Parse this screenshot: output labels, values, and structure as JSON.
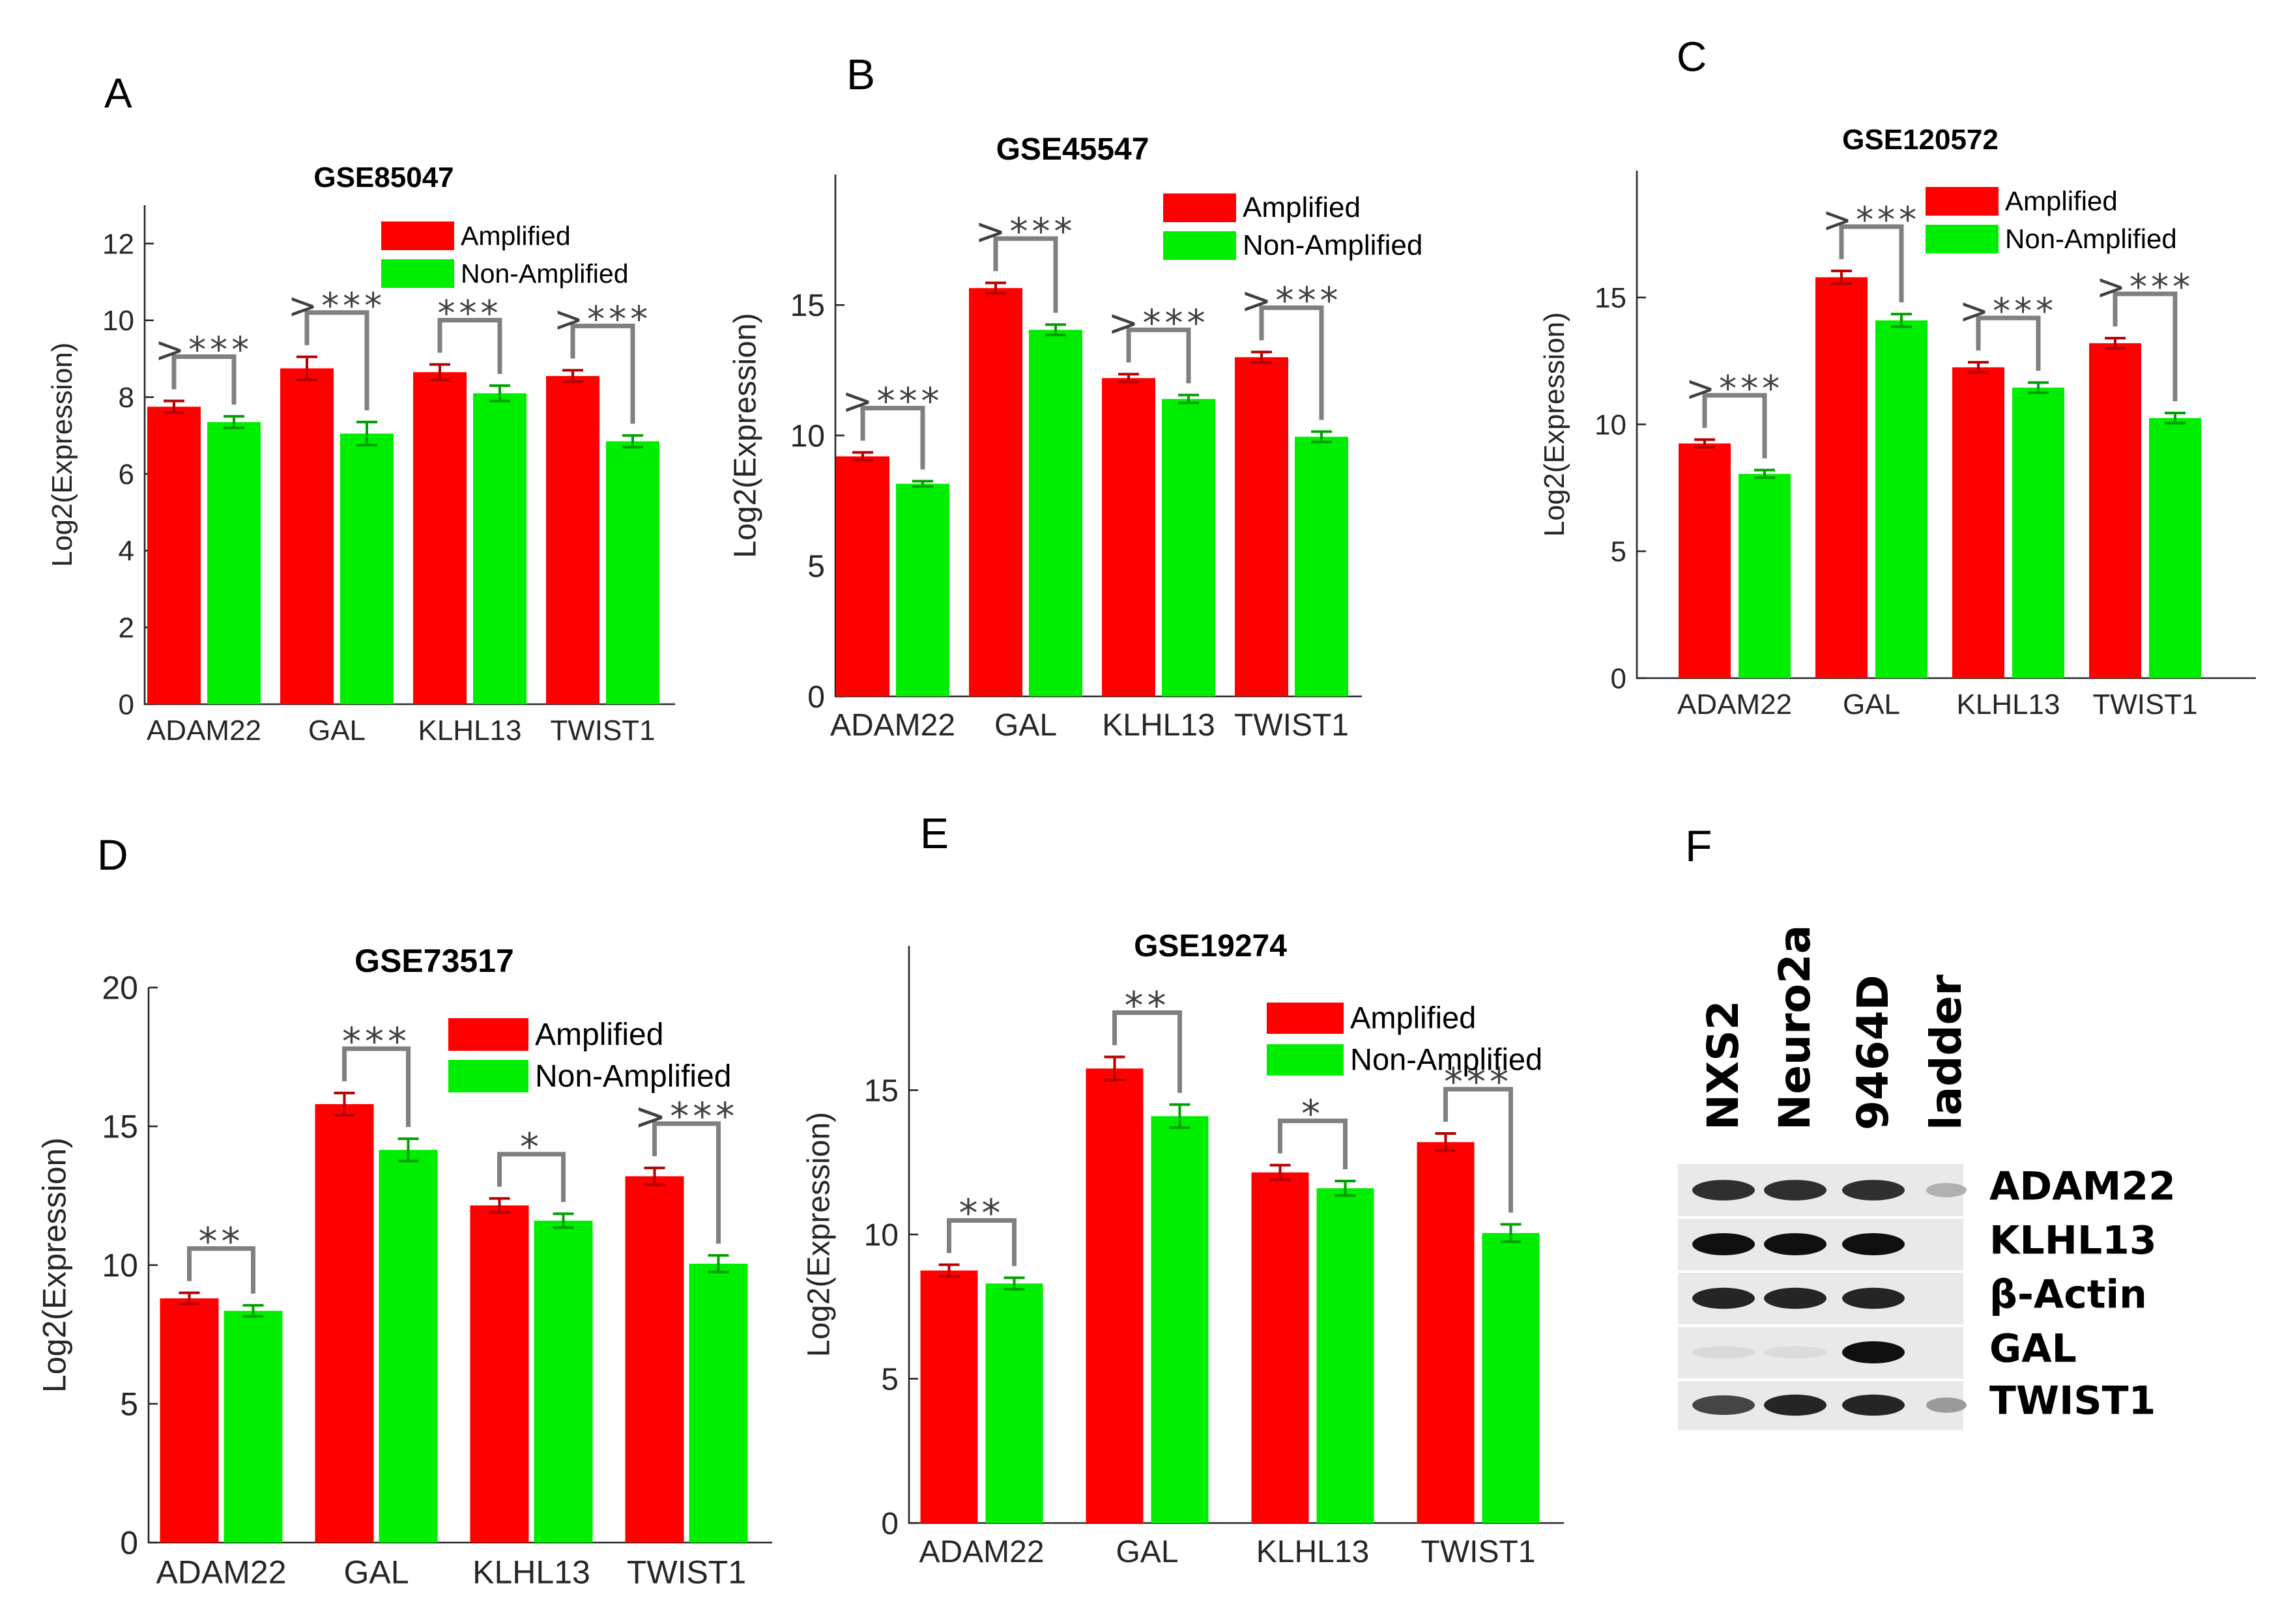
{
  "colors": {
    "amplified": "#ff0000",
    "non_amplified": "#00ee00",
    "amp_err": "#b30000",
    "non_err": "#00a000",
    "bracket": "#808080"
  },
  "legend": {
    "amplified": "Amplified",
    "non_amplified": "Non-Amplified"
  },
  "chart_data": [
    {
      "panel": "A",
      "type": "bar",
      "title": "GSE85047",
      "ylabel": "Log2(Expression)",
      "xlabel": "",
      "categories": [
        "ADAM22",
        "GAL",
        "KLHL13",
        "TWIST1"
      ],
      "ylim": [
        0,
        13
      ],
      "yticks": [
        0,
        2,
        4,
        6,
        8,
        10,
        12
      ],
      "series": [
        {
          "name": "Amplified",
          "values": [
            7.75,
            8.75,
            8.65,
            8.55
          ],
          "errors": [
            0.15,
            0.3,
            0.2,
            0.15
          ]
        },
        {
          "name": "Non-Amplified",
          "values": [
            7.35,
            7.05,
            8.1,
            6.85
          ],
          "errors": [
            0.15,
            0.3,
            0.2,
            0.15
          ]
        }
      ],
      "significance": [
        ">***",
        ">***",
        "***",
        ">***"
      ]
    },
    {
      "panel": "B",
      "type": "bar",
      "title": "GSE45547",
      "ylabel": "Log2(Expression)",
      "xlabel": "",
      "categories": [
        "ADAM22",
        "GAL",
        "KLHL13",
        "TWIST1"
      ],
      "ylim": [
        0,
        20
      ],
      "yticks": [
        0,
        5,
        10,
        15
      ],
      "series": [
        {
          "name": "Amplified",
          "values": [
            9.2,
            15.65,
            12.2,
            13.0
          ],
          "errors": [
            0.15,
            0.2,
            0.15,
            0.2
          ]
        },
        {
          "name": "Non-Amplified",
          "values": [
            8.15,
            14.05,
            11.4,
            9.95
          ],
          "errors": [
            0.1,
            0.2,
            0.15,
            0.2
          ]
        }
      ],
      "significance": [
        ">***",
        ">***",
        ">***",
        ">***"
      ]
    },
    {
      "panel": "C",
      "type": "bar",
      "title": "GSE120572",
      "ylabel": "Log2(Expression)",
      "xlabel": "",
      "categories": [
        "ADAM22",
        "GAL",
        "KLHL13",
        "TWIST1"
      ],
      "ylim": [
        0,
        20
      ],
      "yticks": [
        0,
        5,
        10,
        15
      ],
      "series": [
        {
          "name": "Amplified",
          "values": [
            9.25,
            15.8,
            12.25,
            13.2
          ],
          "errors": [
            0.15,
            0.25,
            0.2,
            0.2
          ]
        },
        {
          "name": "Non-Amplified",
          "values": [
            8.05,
            14.1,
            11.45,
            10.25
          ],
          "errors": [
            0.15,
            0.25,
            0.2,
            0.2
          ]
        }
      ],
      "significance": [
        ">***",
        ">***",
        ">***",
        ">***"
      ]
    },
    {
      "panel": "D",
      "type": "bar",
      "title": "GSE73517",
      "ylabel": "Log2(Expression)",
      "xlabel": "",
      "categories": [
        "ADAM22",
        "GAL",
        "KLHL13",
        "TWIST1"
      ],
      "ylim": [
        0,
        20
      ],
      "yticks": [
        0,
        5,
        10,
        15,
        20
      ],
      "series": [
        {
          "name": "Amplified",
          "values": [
            8.8,
            15.8,
            12.15,
            13.2
          ],
          "errors": [
            0.2,
            0.4,
            0.25,
            0.3
          ]
        },
        {
          "name": "Non-Amplified",
          "values": [
            8.35,
            14.15,
            11.6,
            10.05
          ],
          "errors": [
            0.2,
            0.4,
            0.25,
            0.3
          ]
        }
      ],
      "significance": [
        "**",
        "***",
        "*",
        ">***"
      ]
    },
    {
      "panel": "E",
      "type": "bar",
      "title": "GSE19274",
      "ylabel": "Log2(Expression)",
      "xlabel": "",
      "categories": [
        "ADAM22",
        "GAL",
        "KLHL13",
        "TWIST1"
      ],
      "ylim": [
        0,
        20
      ],
      "yticks": [
        0,
        5,
        10,
        15
      ],
      "series": [
        {
          "name": "Amplified",
          "values": [
            8.75,
            15.75,
            12.15,
            13.2
          ],
          "errors": [
            0.2,
            0.4,
            0.25,
            0.3
          ]
        },
        {
          "name": "Non-Amplified",
          "values": [
            8.3,
            14.1,
            11.6,
            10.05
          ],
          "errors": [
            0.2,
            0.4,
            0.25,
            0.3
          ]
        }
      ],
      "significance": [
        "**",
        "**",
        "*",
        "***"
      ]
    }
  ],
  "blot": {
    "panel": "F",
    "lanes": [
      "NXS2",
      "Neuro2a",
      "9464D",
      "ladder"
    ],
    "rows": [
      {
        "label": "ADAM22",
        "intensity": [
          0.85,
          0.85,
          0.85,
          0.25
        ]
      },
      {
        "label": "KLHL13",
        "intensity": [
          1.0,
          1.0,
          1.0,
          0.0
        ]
      },
      {
        "label": "β-Actin",
        "intensity": [
          0.9,
          0.9,
          0.9,
          0.0
        ]
      },
      {
        "label": "GAL",
        "intensity": [
          0.06,
          0.05,
          1.0,
          0.0
        ]
      },
      {
        "label": "TWIST1",
        "intensity": [
          0.75,
          0.9,
          0.9,
          0.35
        ]
      }
    ]
  }
}
